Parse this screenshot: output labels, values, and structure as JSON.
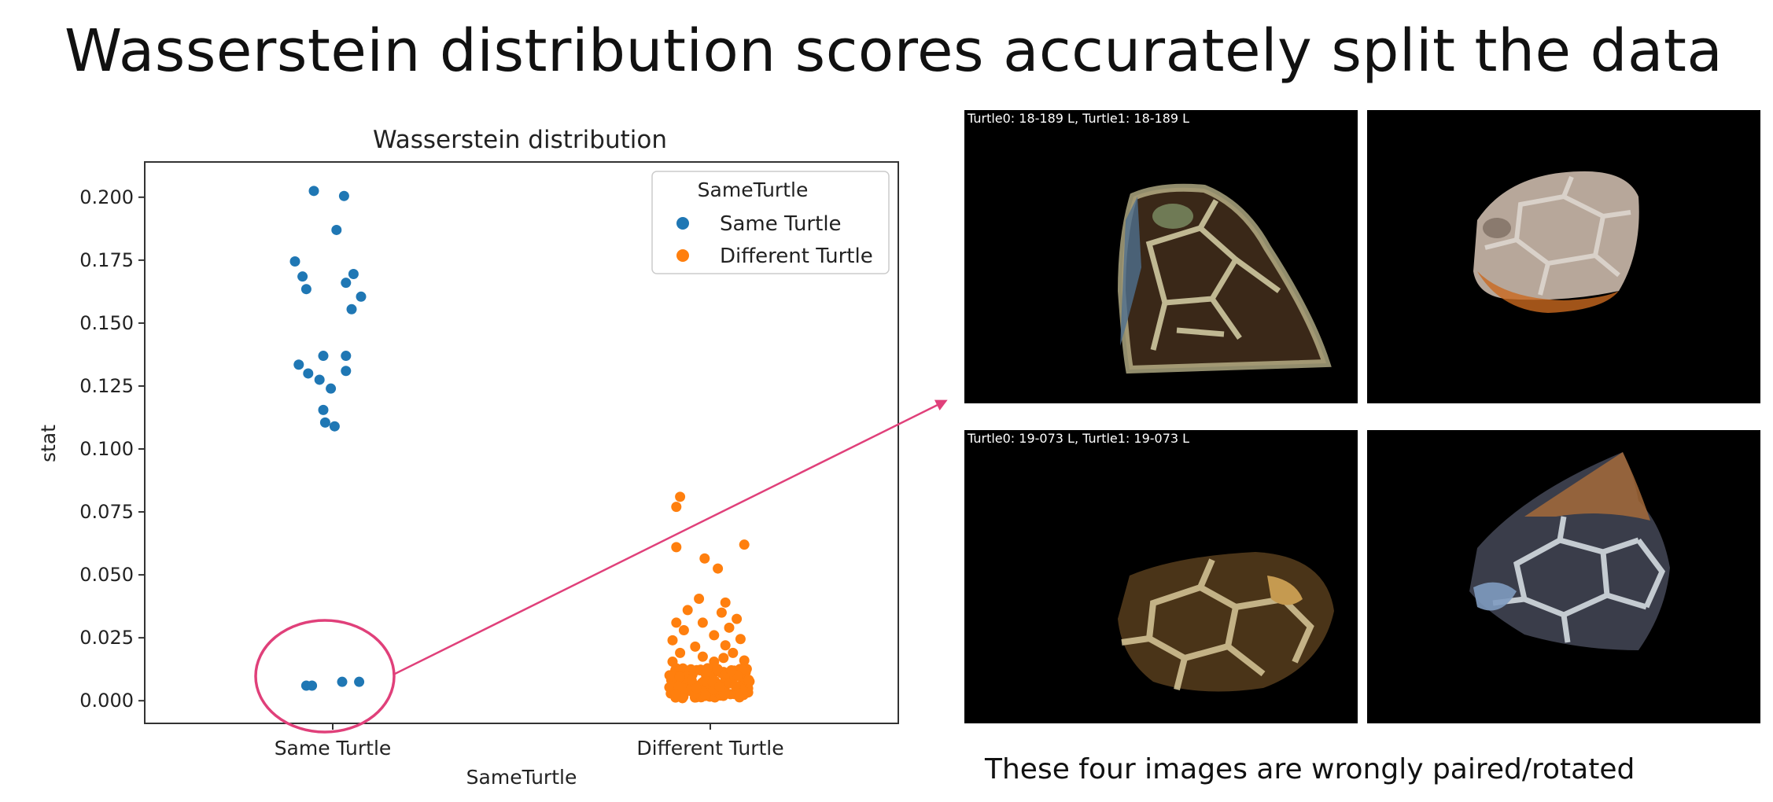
{
  "slide": {
    "title": "Wasserstein distribution scores accurately split the data",
    "caption": "These four images are wrongly paired/rotated"
  },
  "chart_data": {
    "type": "scatter",
    "title": "Wasserstein distribution",
    "xlabel": "SameTurtle",
    "ylabel": "stat",
    "categories": [
      "Same Turtle",
      "Different Turtle"
    ],
    "ylim": [
      -0.009,
      0.214
    ],
    "yticks": [
      "0.000",
      "0.025",
      "0.050",
      "0.075",
      "0.100",
      "0.125",
      "0.150",
      "0.175",
      "0.200"
    ],
    "grid": false,
    "legend": {
      "title": "SameTurtle",
      "placement": "top-right"
    },
    "series": [
      {
        "name": "Same Turtle",
        "color": "#1f77b4",
        "points": [
          {
            "c": 0,
            "off": -0.05,
            "y": 0.2025
          },
          {
            "c": 0,
            "off": 0.03,
            "y": 0.2005
          },
          {
            "c": 0,
            "off": 0.01,
            "y": 0.187
          },
          {
            "c": 0,
            "off": -0.1,
            "y": 0.1745
          },
          {
            "c": 0,
            "off": -0.08,
            "y": 0.1685
          },
          {
            "c": 0,
            "off": 0.055,
            "y": 0.1695
          },
          {
            "c": 0,
            "off": 0.035,
            "y": 0.166
          },
          {
            "c": 0,
            "off": -0.07,
            "y": 0.1635
          },
          {
            "c": 0,
            "off": 0.075,
            "y": 0.1605
          },
          {
            "c": 0,
            "off": 0.05,
            "y": 0.1555
          },
          {
            "c": 0,
            "off": -0.025,
            "y": 0.137
          },
          {
            "c": 0,
            "off": 0.035,
            "y": 0.137
          },
          {
            "c": 0,
            "off": -0.09,
            "y": 0.1335
          },
          {
            "c": 0,
            "off": -0.065,
            "y": 0.13
          },
          {
            "c": 0,
            "off": 0.035,
            "y": 0.131
          },
          {
            "c": 0,
            "off": -0.035,
            "y": 0.1275
          },
          {
            "c": 0,
            "off": -0.005,
            "y": 0.124
          },
          {
            "c": 0,
            "off": -0.025,
            "y": 0.1155
          },
          {
            "c": 0,
            "off": -0.02,
            "y": 0.1105
          },
          {
            "c": 0,
            "off": 0.005,
            "y": 0.109
          },
          {
            "c": 0,
            "off": -0.07,
            "y": 0.006
          },
          {
            "c": 0,
            "off": -0.055,
            "y": 0.006
          },
          {
            "c": 0,
            "off": 0.025,
            "y": 0.0075
          },
          {
            "c": 0,
            "off": 0.07,
            "y": 0.0075
          }
        ]
      },
      {
        "name": "Different Turtle",
        "color": "#ff7f0e",
        "points": [
          {
            "c": 1,
            "off": -0.08,
            "y": 0.081
          },
          {
            "c": 1,
            "off": -0.09,
            "y": 0.077
          },
          {
            "c": 1,
            "off": -0.09,
            "y": 0.061
          },
          {
            "c": 1,
            "off": 0.09,
            "y": 0.062
          },
          {
            "c": 1,
            "off": -0.015,
            "y": 0.0565
          },
          {
            "c": 1,
            "off": 0.02,
            "y": 0.0525
          },
          {
            "c": 1,
            "off": -0.03,
            "y": 0.0405
          },
          {
            "c": 1,
            "off": 0.04,
            "y": 0.039
          },
          {
            "c": 1,
            "off": -0.06,
            "y": 0.036
          },
          {
            "c": 1,
            "off": 0.03,
            "y": 0.035
          },
          {
            "c": 1,
            "off": 0.07,
            "y": 0.0325
          },
          {
            "c": 1,
            "off": -0.09,
            "y": 0.031
          },
          {
            "c": 1,
            "off": -0.02,
            "y": 0.031
          },
          {
            "c": 1,
            "off": 0.05,
            "y": 0.029
          },
          {
            "c": 1,
            "off": -0.07,
            "y": 0.028
          },
          {
            "c": 1,
            "off": 0.01,
            "y": 0.026
          },
          {
            "c": 1,
            "off": -0.1,
            "y": 0.024
          },
          {
            "c": 1,
            "off": 0.08,
            "y": 0.0245
          },
          {
            "c": 1,
            "off": 0.04,
            "y": 0.022
          },
          {
            "c": 1,
            "off": -0.04,
            "y": 0.0215
          },
          {
            "c": 1,
            "off": -0.08,
            "y": 0.019
          },
          {
            "c": 1,
            "off": 0.06,
            "y": 0.019
          },
          {
            "c": 1,
            "off": -0.02,
            "y": 0.0175
          },
          {
            "c": 1,
            "off": 0.09,
            "y": 0.016
          },
          {
            "c": 1,
            "off": -0.1,
            "y": 0.0155
          },
          {
            "c": 1,
            "off": 0.01,
            "y": 0.0155
          },
          {
            "c": 1,
            "off": 0.035,
            "y": 0.017
          }
        ],
        "cluster": {
          "c": 1,
          "ymin": 0.001,
          "ymax": 0.013,
          "count": 150,
          "halfwidth": 0.11
        }
      }
    ],
    "annotation": {
      "type": "ellipse-and-arrow",
      "color": "#e0407a"
    }
  },
  "panels": [
    {
      "label": "Turtle0: 18-189 L, Turtle1: 18-189 L"
    },
    {
      "label": ""
    },
    {
      "label": "Turtle0: 19-073 L, Turtle1: 19-073 L"
    },
    {
      "label": ""
    }
  ]
}
